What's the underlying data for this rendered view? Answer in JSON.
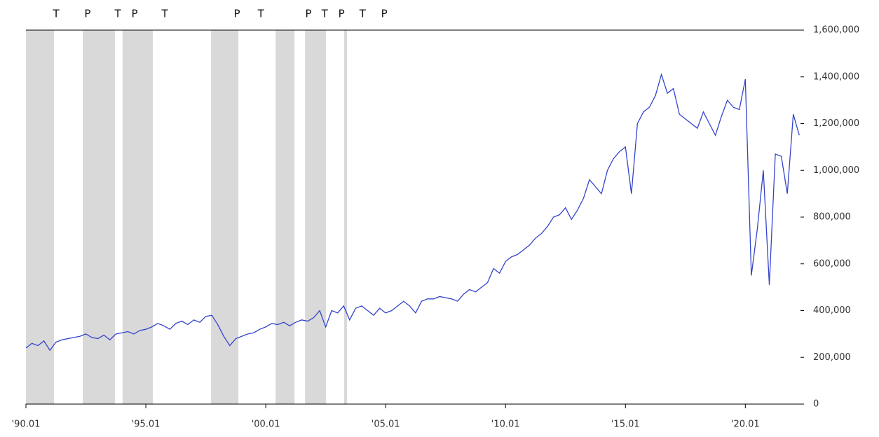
{
  "chart_data": {
    "type": "line",
    "x": [
      1990,
      1990.25,
      1990.5,
      1990.75,
      1991,
      1991.25,
      1991.5,
      1991.75,
      1992,
      1992.25,
      1992.5,
      1992.75,
      1993,
      1993.25,
      1993.5,
      1993.75,
      1994,
      1994.25,
      1994.5,
      1994.75,
      1995,
      1995.25,
      1995.5,
      1995.75,
      1996,
      1996.25,
      1996.5,
      1996.75,
      1997,
      1997.25,
      1997.5,
      1997.75,
      1998,
      1998.25,
      1998.5,
      1998.75,
      1999,
      1999.25,
      1999.5,
      1999.75,
      2000,
      2000.25,
      2000.5,
      2000.75,
      2001,
      2001.25,
      2001.5,
      2001.75,
      2002,
      2002.25,
      2002.5,
      2002.75,
      2003,
      2003.25,
      2003.5,
      2003.75,
      2004,
      2004.25,
      2004.5,
      2004.75,
      2005,
      2005.25,
      2005.5,
      2005.75,
      2006,
      2006.25,
      2006.5,
      2006.75,
      2007,
      2007.25,
      2007.5,
      2007.75,
      2008,
      2008.25,
      2008.5,
      2008.75,
      2009,
      2009.25,
      2009.5,
      2009.75,
      2010,
      2010.25,
      2010.5,
      2010.75,
      2011,
      2011.25,
      2011.5,
      2011.75,
      2012,
      2012.25,
      2012.5,
      2012.75,
      2013,
      2013.25,
      2013.5,
      2013.75,
      2014,
      2014.25,
      2014.5,
      2014.75,
      2015,
      2015.25,
      2015.5,
      2015.75,
      2016,
      2016.25,
      2016.5,
      2016.75,
      2017,
      2017.25,
      2017.5,
      2017.75,
      2018,
      2018.25,
      2018.5,
      2018.75,
      2019,
      2019.25,
      2019.5,
      2019.75,
      2020,
      2020.25,
      2020.5,
      2020.75,
      2021,
      2021.25,
      2021.5,
      2021.75,
      2022,
      2022.25
    ],
    "series": [
      {
        "color": "#3344cc",
        "values": [
          240000,
          260000,
          250000,
          270000,
          230000,
          265000,
          275000,
          280000,
          285000,
          290000,
          300000,
          285000,
          280000,
          295000,
          275000,
          300000,
          305000,
          310000,
          300000,
          315000,
          320000,
          330000,
          345000,
          335000,
          320000,
          345000,
          355000,
          340000,
          360000,
          350000,
          375000,
          380000,
          340000,
          290000,
          250000,
          280000,
          290000,
          300000,
          305000,
          320000,
          330000,
          345000,
          340000,
          350000,
          335000,
          350000,
          360000,
          355000,
          370000,
          400000,
          330000,
          400000,
          390000,
          420000,
          360000,
          410000,
          420000,
          400000,
          380000,
          410000,
          390000,
          400000,
          420000,
          440000,
          420000,
          390000,
          440000,
          450000,
          450000,
          460000,
          455000,
          450000,
          440000,
          470000,
          490000,
          480000,
          500000,
          520000,
          580000,
          560000,
          610000,
          630000,
          640000,
          660000,
          680000,
          710000,
          730000,
          760000,
          800000,
          810000,
          840000,
          790000,
          830000,
          880000,
          960000,
          930000,
          900000,
          1000000,
          1050000,
          1080000,
          1100000,
          900000,
          1200000,
          1250000,
          1270000,
          1320000,
          1410000,
          1330000,
          1350000,
          1240000,
          1220000,
          1200000,
          1180000,
          1250000,
          1200000,
          1150000,
          1230000,
          1300000,
          1270000,
          1260000,
          1390000,
          550000,
          750000,
          1000000,
          510000,
          1070000,
          1060000,
          900000,
          1240000,
          1150000
        ]
      }
    ],
    "xlim": [
      1990,
      2022.3
    ],
    "xticks": [
      {
        "value": 1990,
        "label": "'90.01"
      },
      {
        "value": 1995,
        "label": "'95.01"
      },
      {
        "value": 2000,
        "label": "'00.01"
      },
      {
        "value": 2005,
        "label": "'05.01"
      },
      {
        "value": 2010,
        "label": "'10.01"
      },
      {
        "value": 2015,
        "label": "'15.01"
      },
      {
        "value": 2020,
        "label": "'20.01"
      }
    ],
    "ylim": [
      0,
      1600000
    ],
    "yticks": [
      0,
      {
        "value": 200000,
        "label": "200,000"
      },
      {
        "value": 400000,
        "label": "400,000"
      },
      {
        "value": 600000,
        "label": "600,000"
      },
      {
        "value": 800000,
        "label": "800,000"
      },
      {
        "value": 1000000,
        "label": "1,000,000"
      },
      {
        "value": 1200000,
        "label": "1,200,000"
      },
      {
        "value": 1400000,
        "label": "1,400,000"
      },
      {
        "value": 1600000,
        "label": "1,600,000"
      }
    ],
    "band_color": "#d9d9d9",
    "bands": [
      [
        1990,
        1991.17
      ],
      [
        1992.37,
        1993.71
      ],
      [
        1994.03,
        1995.29
      ],
      [
        1997.72,
        1998.86
      ],
      [
        2000.41,
        2001.2
      ],
      [
        2001.64,
        2002.51
      ],
      [
        2003.27,
        2003.39
      ]
    ],
    "annotations": [
      {
        "text": "T",
        "x": 1991.26
      },
      {
        "text": "P",
        "x": 1992.57
      },
      {
        "text": "T",
        "x": 1993.83
      },
      {
        "text": "P",
        "x": 1994.53
      },
      {
        "text": "T",
        "x": 1995.79
      },
      {
        "text": "P",
        "x": 1998.8
      },
      {
        "text": "T",
        "x": 1999.8
      },
      {
        "text": "P",
        "x": 2001.78
      },
      {
        "text": "T",
        "x": 2002.46
      },
      {
        "text": "P",
        "x": 2003.16
      },
      {
        "text": "T",
        "x": 2004.04
      },
      {
        "text": "P",
        "x": 2004.94
      }
    ]
  }
}
